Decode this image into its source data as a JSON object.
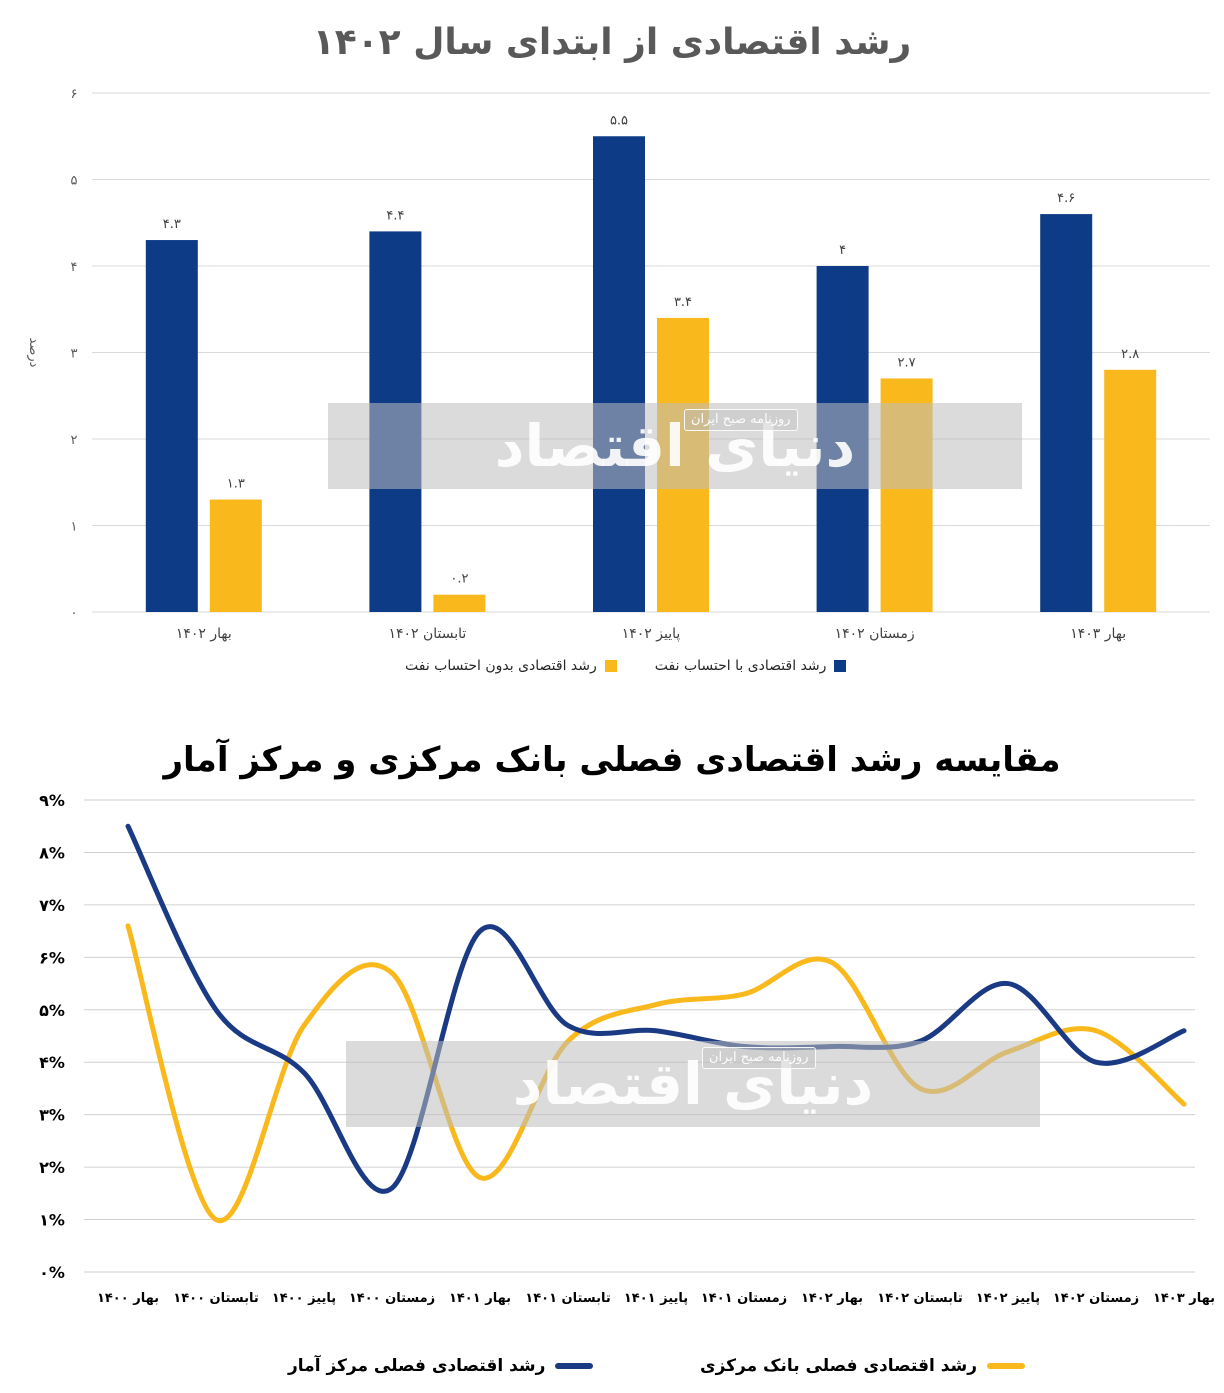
{
  "chart_data": [
    {
      "type": "bar",
      "title": "رشد اقتصادی از ابتدای سال ۱۴۰۲",
      "ylabel": "درصد",
      "ylim": [
        0,
        6
      ],
      "yticks": [
        "۰",
        "۱",
        "۲",
        "۳",
        "۴",
        "۵",
        "۶"
      ],
      "categories": [
        "بهار ۱۴۰۲",
        "تابستان ۱۴۰۲",
        "پاییز ۱۴۰۲",
        "زمستان ۱۴۰۲",
        "بهار ۱۴۰۳"
      ],
      "series": [
        {
          "name": "رشد اقتصادی با احتساب نفت",
          "color": "#0d3b85",
          "values": [
            4.3,
            4.4,
            5.5,
            4.0,
            4.6
          ],
          "labels": [
            "۴.۳",
            "۴.۴",
            "۵.۵",
            "۴",
            "۴.۶"
          ]
        },
        {
          "name": "رشد اقتصادی بدون احتساب نفت",
          "color": "#f9b81b",
          "values": [
            1.3,
            0.2,
            3.4,
            2.7,
            2.8
          ],
          "labels": [
            "۱.۳",
            "۰.۲",
            "۳.۴",
            "۲.۷",
            "۲.۸"
          ]
        }
      ],
      "grid": true,
      "legend": "bottom"
    },
    {
      "type": "line",
      "title": "مقایسه رشد اقتصادی فصلی بانک مرکزی و مرکز آمار",
      "ylim": [
        0,
        9
      ],
      "yticks": [
        "۰%",
        "۱%",
        "۲%",
        "۳%",
        "۴%",
        "۵%",
        "۶%",
        "۷%",
        "۸%",
        "۹%"
      ],
      "categories": [
        "بهار ۱۴۰۰",
        "تابستان ۱۴۰۰",
        "پاییز ۱۴۰۰",
        "زمستان ۱۴۰۰",
        "بهار ۱۴۰۱",
        "تابستان ۱۴۰۱",
        "پاییز ۱۴۰۱",
        "زمستان ۱۴۰۱",
        "بهار ۱۴۰۲",
        "تابستان ۱۴۰۲",
        "پاییز ۱۴۰۲",
        "زمستان ۱۴۰۲",
        "بهار ۱۴۰۳"
      ],
      "series": [
        {
          "name": "رشد اقتصادی فصلی مرکز آمار",
          "color": "#1a3a83",
          "values": [
            8.5,
            5.0,
            3.8,
            1.6,
            6.5,
            4.7,
            4.6,
            4.3,
            4.3,
            4.4,
            5.5,
            4.0,
            4.6
          ]
        },
        {
          "name": "رشد اقتصادی فصلی بانک مرکزی",
          "color": "#f9b81b",
          "values": [
            6.6,
            1.0,
            4.7,
            5.7,
            1.8,
            4.4,
            5.1,
            5.3,
            5.9,
            3.5,
            4.2,
            4.6,
            3.2
          ]
        }
      ],
      "grid": true,
      "legend": "bottom"
    }
  ],
  "watermark": {
    "brand": "دنیای اقتصاد",
    "sub": "روزنامه صبح ایران"
  }
}
